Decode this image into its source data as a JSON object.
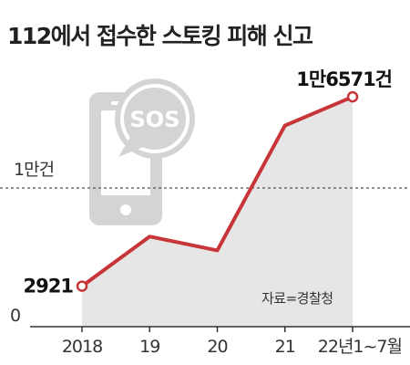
{
  "title": "112에서 접수한 스토킹 피해 신고",
  "source": "자료=경찰청",
  "colors": {
    "line": "#c73538",
    "area": "#e6e6e6",
    "phone_icon": "#d4d4d4",
    "reference_line": "#555555",
    "axis": "#333333"
  },
  "icons": [
    "phone-icon",
    "sos-bubble-icon"
  ],
  "icon_text": "SOS",
  "chart_data": {
    "type": "area",
    "categories": [
      "2018",
      "19",
      "20",
      "21",
      "22년1~7월"
    ],
    "values": [
      2921,
      6500,
      5500,
      14500,
      16571
    ],
    "title": "112에서 접수한 스토킹 피해 신고",
    "xlabel": "",
    "ylabel": "",
    "ylim": [
      0,
      18500
    ],
    "y_ticks": [
      {
        "value": 0,
        "label": "0"
      },
      {
        "value": 10000,
        "label": "1만건"
      }
    ],
    "reference_lines": [
      {
        "value": 10000,
        "style": "dashed"
      }
    ],
    "data_labels": [
      {
        "index": 0,
        "text": "2921"
      },
      {
        "index": 4,
        "text": "1만6571건"
      }
    ],
    "grid": false,
    "legend": "none"
  }
}
